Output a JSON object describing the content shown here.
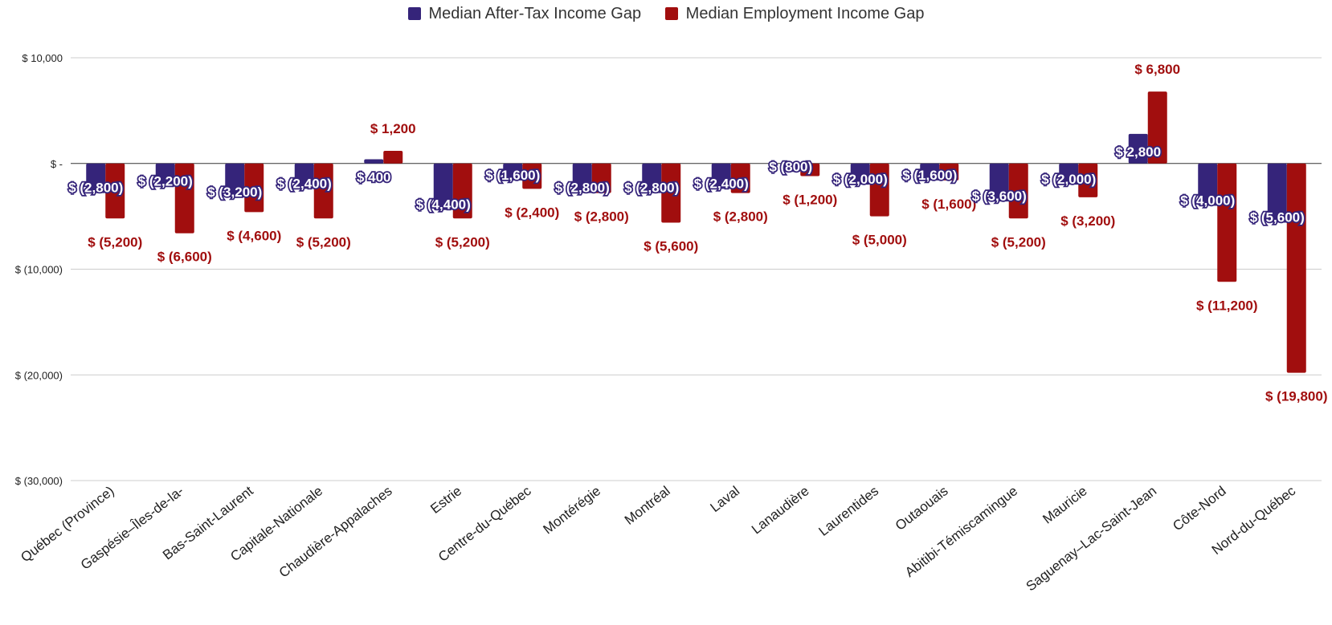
{
  "legend": {
    "series_a_label": "Median After-Tax Income Gap",
    "series_b_label": "Median Employment Income Gap"
  },
  "colors": {
    "series_a": "#35247a",
    "series_b": "#a10e0e",
    "grid": "#cccccc",
    "zero_line": "#333333"
  },
  "chart_data": {
    "type": "bar",
    "categories": [
      "Québec (Province)",
      "Gaspésie–Îles-de-la-",
      "Bas-Saint-Laurent",
      "Capitale-Nationale",
      "Chaudière-Appalaches",
      "Estrie",
      "Centre-du-Québec",
      "Montérégie",
      "Montréal",
      "Laval",
      "Lanaudière",
      "Laurentides",
      "Outaouais",
      "Abitibi-Témiscamingue",
      "Mauricie",
      "Saguenay–Lac-Saint-Jean",
      "Côte-Nord",
      "Nord-du-Québec"
    ],
    "series": [
      {
        "name": "Median After-Tax Income Gap",
        "values": [
          -2800,
          -2200,
          -3200,
          -2400,
          400,
          -4400,
          -1600,
          -2800,
          -2800,
          -2400,
          -800,
          -2000,
          -1600,
          -3600,
          -2000,
          2800,
          -4000,
          -5600
        ],
        "labels": [
          "$ (2,800)",
          "$ (2,200)",
          "$ (3,200)",
          "$ (2,400)",
          "$ 400",
          "$ (4,400)",
          "$ (1,600)",
          "$ (2,800)",
          "$ (2,800)",
          "$ (2,400)",
          "$ (800)",
          "$ (2,000)",
          "$ (1,600)",
          "$ (3,600)",
          "$ (2,000)",
          "$ 2,800",
          "$ (4,000)",
          "$ (5,600)"
        ]
      },
      {
        "name": "Median Employment Income Gap",
        "values": [
          -5200,
          -6600,
          -4600,
          -5200,
          1200,
          -5200,
          -2400,
          -2800,
          -5600,
          -2800,
          -1200,
          -5000,
          -1600,
          -5200,
          -3200,
          6800,
          -11200,
          -19800
        ],
        "labels": [
          "$ (5,200)",
          "$ (6,600)",
          "$ (4,600)",
          "$ (5,200)",
          "$ 1,200",
          "$ (5,200)",
          "$ (2,400)",
          "$ (2,800)",
          "$ (5,600)",
          "$ (2,800)",
          "$ (1,200)",
          "$ (5,000)",
          "$ (1,600)",
          "$ (5,200)",
          "$ (3,200)",
          "$ 6,800",
          "$ (11,200)",
          "$ (19,800)"
        ]
      }
    ],
    "y_ticks": [
      10000,
      0,
      -10000,
      -20000,
      -30000
    ],
    "y_tick_labels": [
      "$ 10,000",
      "$ -",
      "$ (10,000)",
      "$ (20,000)",
      "$ (30,000)"
    ],
    "ylim": [
      -30000,
      10000
    ],
    "grid": true,
    "legend_position": "top-center"
  }
}
